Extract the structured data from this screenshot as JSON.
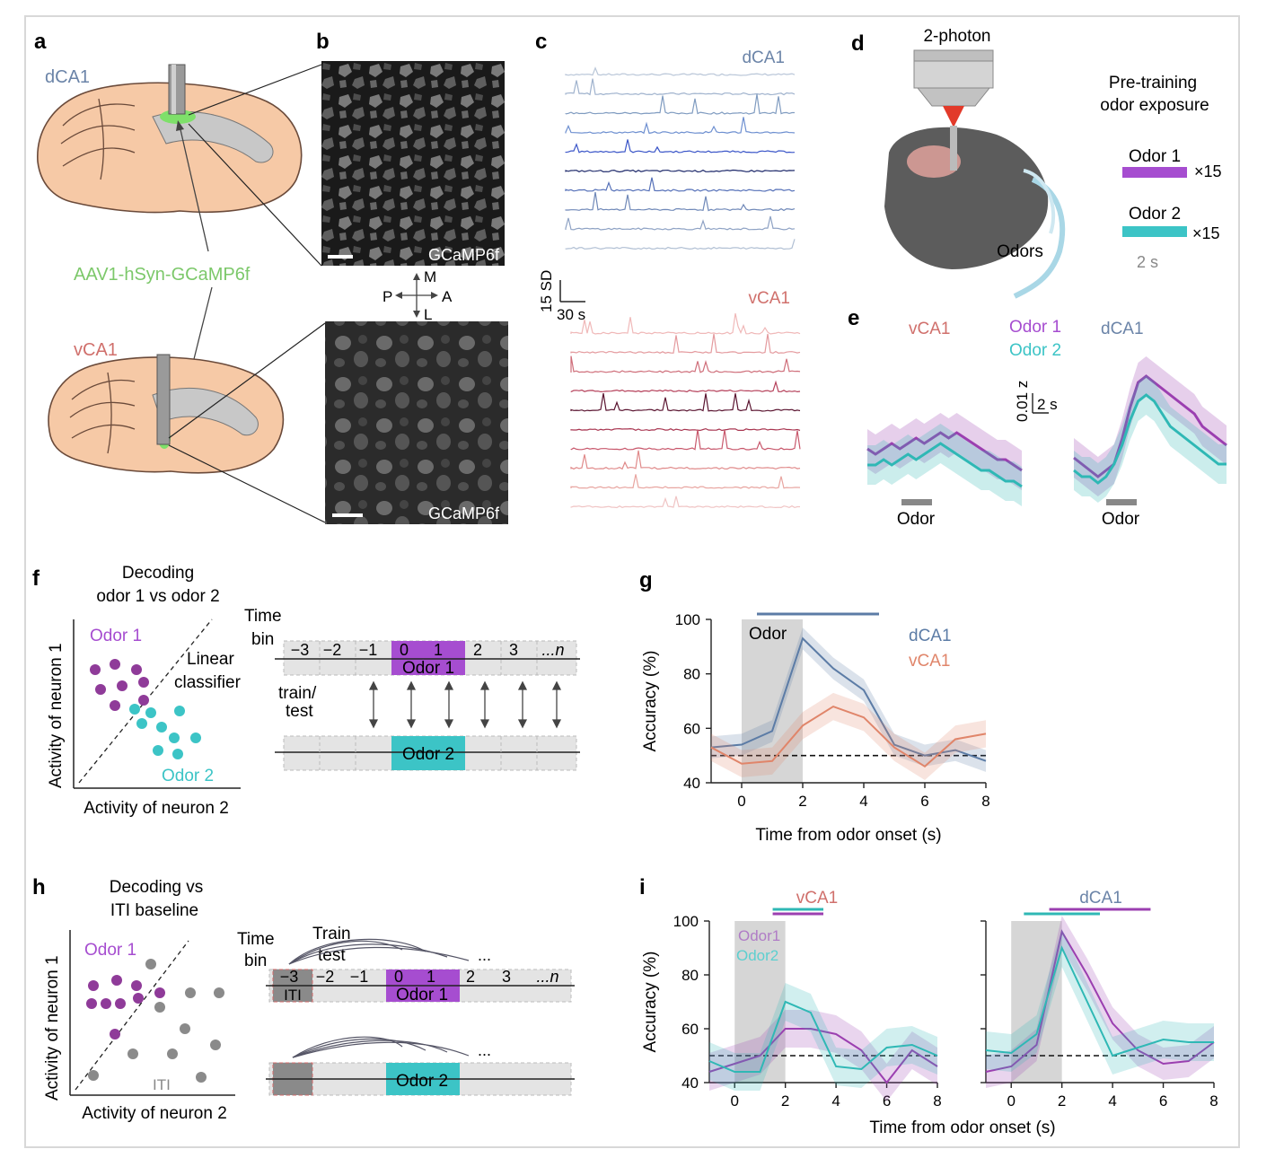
{
  "panels": {
    "a": {
      "letter": "a",
      "top_region": "dCA1",
      "bottom_region": "vCA1",
      "virus": "AAV1-hSyn-GCaMP6f"
    },
    "b": {
      "letter": "b",
      "label_top": "GCaMP6f",
      "label_bottom": "GCaMP6f",
      "compass": {
        "m": "M",
        "l": "L",
        "p": "P",
        "a": "A"
      }
    },
    "c": {
      "letter": "c",
      "top_region": "dCA1",
      "bottom_region": "vCA1",
      "scale_y": "15 SD",
      "scale_x": "30 s"
    },
    "d": {
      "letter": "d",
      "microscope": "2-photon",
      "odors_label": "Odors",
      "title_line1": "Pre-training",
      "title_line2": "odor exposure",
      "odor1": "Odor 1",
      "odor1_count": "×15",
      "odor2": "Odor 2",
      "odor2_count": "×15",
      "duration": "2 s"
    },
    "e": {
      "letter": "e",
      "left_region": "vCA1",
      "right_region": "dCA1",
      "odor1": "Odor 1",
      "odor2": "Odor 2",
      "scale_y": "0.01 z",
      "scale_x": "2 s",
      "odor_bar_left": "Odor",
      "odor_bar_right": "Odor"
    },
    "f": {
      "letter": "f",
      "title_line1": "Decoding",
      "title_line2": "odor 1 vs odor 2",
      "odor1": "Odor 1",
      "odor2": "Odor 2",
      "classifier_line1": "Linear",
      "classifier_line2": "classifier",
      "ylabel": "Activity of neuron 1",
      "xlabel": "Activity of neuron 2",
      "time_line1": "Time",
      "time_line2": "bin",
      "bins": [
        "−3",
        "−2",
        "−1",
        "0",
        "1",
        "2",
        "3",
        "...n"
      ],
      "block_odor1": "Odor 1",
      "block_odor2": "Odor 2",
      "train_line1": "train/",
      "train_line2": "test"
    },
    "g": {
      "letter": "g",
      "odor_label": "Odor",
      "legend_d": "dCA1",
      "legend_v": "vCA1"
    },
    "h": {
      "letter": "h",
      "title_line1": "Decoding vs",
      "title_line2": "ITI baseline",
      "odor1": "Odor 1",
      "iti": "ITI",
      "ylabel": "Activity of neuron 1",
      "xlabel": "Activity of neuron 2",
      "time_line1": "Time",
      "time_line2": "bin",
      "train": "Train",
      "test": "test",
      "bins": [
        "−3",
        "−2",
        "−1",
        "0",
        "1",
        "2",
        "3",
        "...n"
      ],
      "ellipsis": "...",
      "iti_block": "ITI",
      "block_odor1": "Odor 1",
      "block_odor2": "Odor 2"
    },
    "i": {
      "letter": "i",
      "left_title": "vCA1",
      "right_title": "dCA1",
      "legend_o1": "Odor1",
      "legend_o2": "Odor2",
      "xlabel": "Time from odor onset (s)"
    }
  },
  "chart_data": [
    {
      "id": "g",
      "type": "line",
      "xlabel": "Time from odor onset (s)",
      "ylabel": "Accuracy (%)",
      "xlim": [
        -1,
        8
      ],
      "ylim": [
        40,
        100
      ],
      "xticks": [
        0,
        2,
        4,
        6,
        8
      ],
      "yticks": [
        40,
        60,
        80,
        100
      ],
      "chance": 50,
      "odor_window": [
        0,
        2
      ],
      "significance_bars": [
        {
          "series": "dCA1",
          "from": 0.5,
          "to": 4.5
        }
      ],
      "series": [
        {
          "name": "dCA1",
          "color": "#5c7ca6",
          "x": [
            -1,
            0,
            1,
            2,
            3,
            4,
            5,
            6,
            7,
            8
          ],
          "y": [
            53,
            54,
            59,
            93,
            82,
            74,
            54,
            50,
            52,
            48
          ],
          "ci": 4
        },
        {
          "name": "vCA1",
          "color": "#e0856a",
          "x": [
            -1,
            0,
            1,
            2,
            3,
            4,
            5,
            6,
            7,
            8
          ],
          "y": [
            53,
            47,
            48,
            61,
            68,
            64,
            53,
            46,
            56,
            58
          ],
          "ci": 5
        }
      ]
    },
    {
      "id": "i-vCA1",
      "type": "line",
      "title": "vCA1",
      "xlabel": "Time from odor onset (s)",
      "ylabel": "Accuracy (%)",
      "xlim": [
        -1,
        8
      ],
      "ylim": [
        40,
        100
      ],
      "xticks": [
        0,
        2,
        4,
        6,
        8
      ],
      "yticks": [
        40,
        60,
        80,
        100
      ],
      "chance": 50,
      "odor_window": [
        0,
        2
      ],
      "significance_bars": [
        {
          "series": "Odor1",
          "from": 1.5,
          "to": 3.5
        },
        {
          "series": "Odor2",
          "from": 1.5,
          "to": 3.5
        }
      ],
      "series": [
        {
          "name": "Odor1",
          "color": "#9b3fb0",
          "x": [
            -1,
            0,
            1,
            2,
            3,
            4,
            5,
            6,
            7,
            8
          ],
          "y": [
            44,
            47,
            50,
            60,
            60,
            58,
            52,
            40,
            52,
            46
          ],
          "ci": 7
        },
        {
          "name": "Odor2",
          "color": "#2fb8b5",
          "x": [
            -1,
            0,
            1,
            2,
            3,
            4,
            5,
            6,
            7,
            8
          ],
          "y": [
            48,
            44,
            44,
            70,
            66,
            46,
            45,
            53,
            54,
            50
          ],
          "ci": 7
        }
      ]
    },
    {
      "id": "i-dCA1",
      "type": "line",
      "title": "dCA1",
      "xlabel": "Time from odor onset (s)",
      "ylabel": "Accuracy (%)",
      "xlim": [
        -1,
        8
      ],
      "ylim": [
        40,
        100
      ],
      "xticks": [
        0,
        2,
        4,
        6,
        8
      ],
      "yticks": [
        40,
        60,
        80,
        100
      ],
      "chance": 50,
      "odor_window": [
        0,
        2
      ],
      "significance_bars": [
        {
          "series": "Odor2",
          "from": 0.5,
          "to": 3.5
        },
        {
          "series": "Odor1",
          "from": 1.5,
          "to": 5.5
        }
      ],
      "series": [
        {
          "name": "Odor1",
          "color": "#9b3fb0",
          "x": [
            -1,
            0,
            1,
            2,
            3,
            4,
            5,
            6,
            7,
            8
          ],
          "y": [
            44,
            46,
            54,
            96,
            80,
            62,
            52,
            47,
            48,
            55
          ],
          "ci": 6
        },
        {
          "name": "Odor2",
          "color": "#2fb8b5",
          "x": [
            -1,
            0,
            1,
            2,
            3,
            4,
            5,
            6,
            7,
            8
          ],
          "y": [
            52,
            51,
            58,
            90,
            70,
            50,
            53,
            56,
            55,
            55
          ],
          "ci": 7
        }
      ]
    }
  ]
}
